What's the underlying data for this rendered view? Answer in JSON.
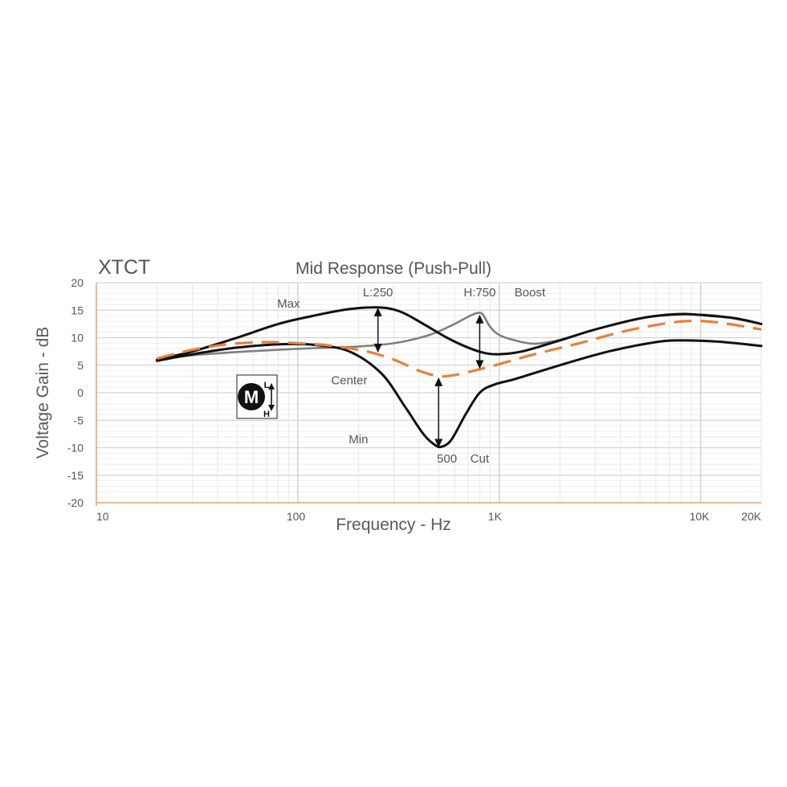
{
  "brand": "XTCT",
  "chart_data": {
    "type": "line",
    "title": "Mid Response (Push-Pull)",
    "xlabel": "Frequency - Hz",
    "ylabel": "Voltage Gain - dB",
    "x_scale": "log",
    "xlim": [
      10,
      20000
    ],
    "ylim": [
      -20,
      20
    ],
    "y_ticks": [
      20,
      15,
      10,
      5,
      0,
      -5,
      -10,
      -15,
      -20
    ],
    "x_ticks": [
      {
        "value": 10,
        "label": "10"
      },
      {
        "value": 100,
        "label": "100"
      },
      {
        "value": 1000,
        "label": "1K"
      },
      {
        "value": 10000,
        "label": "10K"
      },
      {
        "value": 20000,
        "label": "20K"
      }
    ],
    "grid": true,
    "series": [
      {
        "id": "max",
        "name": "Max",
        "color": "#111111",
        "style": "solid",
        "x": [
          20,
          30,
          50,
          80,
          120,
          180,
          250,
          320,
          420,
          550,
          700,
          850,
          1000,
          1300,
          2000,
          3000,
          5000,
          7000,
          8500,
          11000,
          15000,
          20000
        ],
        "y": [
          6,
          7.5,
          10,
          12.5,
          14,
          15.2,
          15.5,
          14.8,
          12.5,
          10,
          8.2,
          7.2,
          7,
          7.5,
          9.5,
          11.5,
          13.5,
          14.2,
          14.3,
          14,
          13.5,
          12.5
        ]
      },
      {
        "id": "boost",
        "name": "Boost",
        "color": "#7f7f7f",
        "style": "solid",
        "x": [
          20,
          30,
          50,
          80,
          120,
          200,
          300,
          450,
          600,
          700,
          780,
          830,
          900,
          1000,
          1200,
          1500,
          2000,
          3000,
          5000,
          8000,
          12000,
          20000
        ],
        "y": [
          6,
          6.8,
          7.4,
          7.8,
          8.1,
          8.4,
          9,
          10.5,
          12.5,
          13.8,
          14.5,
          14.2,
          12,
          10.5,
          9.5,
          8.9,
          9.6,
          11.5,
          13.5,
          14.2,
          14,
          12.5
        ]
      },
      {
        "id": "center",
        "name": "Center",
        "color": "#e8803a",
        "style": "dashed",
        "x": [
          20,
          30,
          45,
          70,
          100,
          150,
          220,
          300,
          400,
          500,
          600,
          750,
          1000,
          1500,
          2500,
          4000,
          6000,
          8500,
          12000,
          20000
        ],
        "y": [
          6.2,
          7.8,
          8.8,
          9.2,
          9,
          8.5,
          7.5,
          6,
          4,
          3,
          3.2,
          4,
          5.2,
          7,
          9,
          11,
          12.3,
          13,
          12.8,
          11.5
        ]
      },
      {
        "id": "min",
        "name": "Min",
        "color": "#111111",
        "style": "solid",
        "x": [
          20,
          30,
          50,
          80,
          120,
          180,
          260,
          340,
          420,
          480,
          520,
          580,
          680,
          800,
          950,
          1200,
          2000,
          3500,
          6000,
          8000,
          12000,
          20000
        ],
        "y": [
          5.8,
          7,
          8.2,
          8.8,
          8.7,
          7.5,
          3.5,
          -2.5,
          -7.5,
          -9.5,
          -9.8,
          -8.5,
          -4,
          0,
          1.5,
          2.5,
          5,
          7.5,
          9.2,
          9.5,
          9.3,
          8.5
        ]
      }
    ],
    "annotations": [
      {
        "text": "Max",
        "x": 90,
        "y": 15.5
      },
      {
        "text": "L:250",
        "x": 250,
        "y": 17.5
      },
      {
        "text": "H:750",
        "x": 800,
        "y": 17.5
      },
      {
        "text": "Boost",
        "x": 1420,
        "y": 17.5
      },
      {
        "text": "Center",
        "x": 180,
        "y": 1.5
      },
      {
        "text": "Min",
        "x": 200,
        "y": -9.2
      },
      {
        "text": "500",
        "x": 550,
        "y": -12.7
      },
      {
        "text": "Cut",
        "x": 800,
        "y": -12.7
      }
    ],
    "arrows": [
      {
        "x": 250,
        "from": 15.5,
        "to": 7.3
      },
      {
        "x": 800,
        "from": 14.2,
        "to": 4.3
      },
      {
        "x": 500,
        "from": 2.8,
        "to": -10
      }
    ],
    "knob_icon": {
      "letter": "M",
      "top": "L",
      "bottom": "H"
    }
  }
}
